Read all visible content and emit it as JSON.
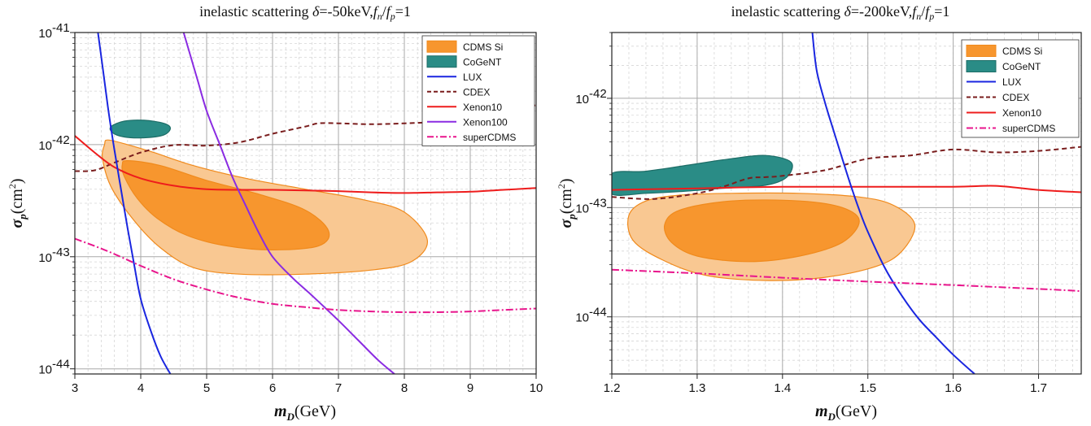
{
  "colors": {
    "cdms_outer": "#f9c892",
    "cdms_inner": "#f7962e",
    "cdms_edge": "#f08a1c",
    "cogent": "#2a8c86",
    "cogent_edge": "#1d6d67",
    "lux": "#1a26e0",
    "cdex": "#7a1d1d",
    "xenon10": "#ee1c1c",
    "xenon100": "#8a2be2",
    "supercdms": "#e8158c",
    "grid_major": "#a8a8a8",
    "grid_minor": "#d6d6d6"
  },
  "chart_data": [
    {
      "type": "line",
      "title": "inelastic scattering δ=-50keV, f_n/f_p=1",
      "title_parts": {
        "main": "inelastic scattering ",
        "delta": "δ",
        "rest1": "=-50keV,",
        "f": "f",
        "n": "n",
        "slash": "/",
        "p": "p",
        "eq": "=1"
      },
      "xlabel": {
        "m": "m",
        "sub": "D",
        "unit": "(GeV)"
      },
      "ylabel": {
        "sigma": "σ",
        "sub": "p",
        "unit": "(cm",
        "sup": "2",
        "close": ")"
      },
      "xlim": [
        3,
        10
      ],
      "ylim": [
        9e-45,
        1e-41
      ],
      "yscale": "log",
      "xticks": [
        "3",
        "4",
        "5",
        "6",
        "7",
        "8",
        "9",
        "10"
      ],
      "yticks": [
        {
          "value": 1e-41,
          "base": "10",
          "exp": "-41"
        },
        {
          "value": 1e-42,
          "base": "10",
          "exp": "-42"
        },
        {
          "value": 1e-43,
          "base": "10",
          "exp": "-43"
        },
        {
          "value": 1e-44,
          "base": "10",
          "exp": "-44"
        }
      ],
      "legend_position": "top-right",
      "legend": [
        {
          "label": "CDMS Si",
          "kind": "fill-light"
        },
        {
          "label": "CoGeNT",
          "kind": "fill-teal"
        },
        {
          "label": "LUX",
          "kind": "line-lux"
        },
        {
          "label": "CDEX",
          "kind": "line-cdex"
        },
        {
          "label": "Xenon10",
          "kind": "line-xenon10"
        },
        {
          "label": "Xenon100",
          "kind": "line-xenon100"
        },
        {
          "label": "superCDMS",
          "kind": "line-supercdms"
        }
      ],
      "regions": [
        {
          "name": "CDMS Si 2σ",
          "style": "cdms_outer",
          "points": [
            [
              3.5,
              1.1e-42
            ],
            [
              3.8,
              1e-42
            ],
            [
              4.2,
              8.5e-43
            ],
            [
              4.8,
              6.5e-43
            ],
            [
              5.6,
              5e-43
            ],
            [
              6.5,
              4e-43
            ],
            [
              7.4,
              3.2e-43
            ],
            [
              8.0,
              2.5e-43
            ],
            [
              8.35,
              1.4e-43
            ],
            [
              8.1,
              9e-44
            ],
            [
              7.5,
              7.6e-44
            ],
            [
              6.5,
              7e-44
            ],
            [
              5.5,
              7e-44
            ],
            [
              4.8,
              8e-44
            ],
            [
              4.3,
              1.2e-43
            ],
            [
              3.9,
              2.1e-43
            ],
            [
              3.55,
              4.2e-43
            ],
            [
              3.42,
              7.5e-43
            ],
            [
              3.45,
              1e-42
            ]
          ]
        },
        {
          "name": "CDMS Si 1σ",
          "style": "cdms_inner",
          "points": [
            [
              3.8,
              7.2e-43
            ],
            [
              4.3,
              6.5e-43
            ],
            [
              5.0,
              4.8e-43
            ],
            [
              5.8,
              3.6e-43
            ],
            [
              6.5,
              2.6e-43
            ],
            [
              6.85,
              1.7e-43
            ],
            [
              6.7,
              1.25e-43
            ],
            [
              6.0,
              1.15e-43
            ],
            [
              5.3,
              1.25e-43
            ],
            [
              4.7,
              1.55e-43
            ],
            [
              4.25,
              2.2e-43
            ],
            [
              3.95,
              3.3e-43
            ],
            [
              3.75,
              5.2e-43
            ],
            [
              3.72,
              6.6e-43
            ]
          ]
        },
        {
          "name": "CoGeNT",
          "style": "cogent",
          "points": [
            [
              3.55,
              1.45e-42
            ],
            [
              3.75,
              1.62e-42
            ],
            [
              4.05,
              1.65e-42
            ],
            [
              4.35,
              1.55e-42
            ],
            [
              4.45,
              1.4e-42
            ],
            [
              4.35,
              1.22e-42
            ],
            [
              4.05,
              1.15e-42
            ],
            [
              3.75,
              1.17e-42
            ],
            [
              3.57,
              1.28e-42
            ]
          ]
        }
      ],
      "series": [
        {
          "name": "CDEX",
          "style": "cdex",
          "dash": "6,4",
          "x": [
            3,
            3.3,
            3.6,
            4.0,
            4.5,
            5.0,
            5.5,
            6.0,
            6.5,
            6.7,
            7.0,
            7.5,
            8.0,
            8.5,
            9.0,
            9.5,
            10
          ],
          "y": [
            5.8e-43,
            5.9e-43,
            6.9e-43,
            8.5e-43,
            9.9e-43,
            9.8e-43,
            1.05e-42,
            1.25e-42,
            1.45e-42,
            1.55e-42,
            1.55e-42,
            1.52e-42,
            1.55e-42,
            1.6e-42,
            1.75e-42,
            1.95e-42,
            2.25e-42
          ]
        },
        {
          "name": "Xenon10",
          "style": "xenon10",
          "x": [
            3,
            3.3,
            3.6,
            4.0,
            4.5,
            5.0,
            5.5,
            6.0,
            6.5,
            7.0,
            7.5,
            8.0,
            8.5,
            9.0,
            9.5,
            10
          ],
          "y": [
            1.2e-42,
            8.5e-43,
            6.3e-43,
            5e-43,
            4.3e-43,
            4e-43,
            3.95e-43,
            3.95e-43,
            3.9e-43,
            3.85e-43,
            3.75e-43,
            3.7e-43,
            3.75e-43,
            3.8e-43,
            3.95e-43,
            4.1e-43
          ]
        },
        {
          "name": "LUX",
          "style": "lux",
          "x": [
            3.35,
            3.42,
            3.5,
            3.6,
            3.7,
            3.8,
            3.9,
            4.0,
            4.15,
            4.3,
            4.45
          ],
          "y": [
            1e-41,
            5e-42,
            2.2e-42,
            9e-43,
            4e-43,
            1.8e-43,
            8.5e-44,
            4.2e-44,
            2.2e-44,
            1.3e-44,
            9e-45
          ]
        },
        {
          "name": "Xenon100",
          "style": "xenon100",
          "x": [
            4.65,
            4.85,
            5.0,
            5.2,
            5.4,
            5.6,
            5.8,
            6.0,
            6.3,
            6.6,
            7.0,
            7.3,
            7.6,
            7.85
          ],
          "y": [
            1e-41,
            4e-42,
            2e-42,
            1e-42,
            5e-43,
            2.8e-43,
            1.6e-43,
            1e-43,
            6.5e-44,
            4.5e-44,
            2.7e-44,
            1.8e-44,
            1.2e-44,
            9e-45
          ]
        },
        {
          "name": "superCDMS",
          "style": "supercdms",
          "dash": "9,3,2,3",
          "x": [
            3,
            3.5,
            4.0,
            4.5,
            5.0,
            5.5,
            6.0,
            6.5,
            7.0,
            7.5,
            8.0,
            8.5,
            9.0,
            9.5,
            10
          ],
          "y": [
            1.45e-43,
            1.12e-43,
            8.3e-44,
            6.3e-44,
            5.1e-44,
            4.3e-44,
            3.8e-44,
            3.55e-44,
            3.35e-44,
            3.25e-44,
            3.2e-44,
            3.2e-44,
            3.25e-44,
            3.35e-44,
            3.45e-44
          ]
        }
      ]
    },
    {
      "type": "line",
      "title": "inelastic scattering δ=-200keV, f_n/f_p=1",
      "title_parts": {
        "main": "inelastic scattering ",
        "delta": "δ",
        "rest1": "=-200keV,",
        "f": "f",
        "n": "n",
        "slash": "/",
        "p": "p",
        "eq": "=1"
      },
      "xlabel": {
        "m": "m",
        "sub": "D",
        "unit": "(GeV)"
      },
      "ylabel": {
        "sigma": "σ",
        "sub": "p",
        "unit": "(cm",
        "sup": "2",
        "close": ")"
      },
      "xlim": [
        1.2,
        1.75
      ],
      "ylim": [
        3e-45,
        4e-42
      ],
      "yscale": "log",
      "xticks": [
        "1.2",
        "1.3",
        "1.4",
        "1.5",
        "1.6",
        "1.7"
      ],
      "yticks": [
        {
          "value": 1e-42,
          "base": "10",
          "exp": "-42"
        },
        {
          "value": 1e-43,
          "base": "10",
          "exp": "-43"
        },
        {
          "value": 1e-44,
          "base": "10",
          "exp": "-44"
        }
      ],
      "legend_position": "top-right",
      "legend": [
        {
          "label": "CDMS Si",
          "kind": "fill-light"
        },
        {
          "label": "CoGeNT",
          "kind": "fill-teal"
        },
        {
          "label": "LUX",
          "kind": "line-lux"
        },
        {
          "label": "CDEX",
          "kind": "line-cdex"
        },
        {
          "label": "Xenon10",
          "kind": "line-xenon10"
        },
        {
          "label": "superCDMS",
          "kind": "line-supercdms"
        }
      ],
      "regions": [
        {
          "name": "CDMS Si 2σ",
          "style": "cdms_outer",
          "points": [
            [
              1.24,
              1.15e-43
            ],
            [
              1.28,
              1.3e-43
            ],
            [
              1.34,
              1.35e-43
            ],
            [
              1.42,
              1.35e-43
            ],
            [
              1.49,
              1.25e-43
            ],
            [
              1.53,
              1.05e-43
            ],
            [
              1.555,
              7e-44
            ],
            [
              1.54,
              4e-44
            ],
            [
              1.51,
              2.9e-44
            ],
            [
              1.45,
              2.3e-44
            ],
            [
              1.38,
              2.15e-44
            ],
            [
              1.31,
              2.4e-44
            ],
            [
              1.26,
              3.3e-44
            ],
            [
              1.225,
              5e-44
            ],
            [
              1.22,
              8.5e-44
            ]
          ]
        },
        {
          "name": "CDMS Si 1σ",
          "style": "cdms_inner",
          "points": [
            [
              1.28,
              9.5e-44
            ],
            [
              1.34,
              1.15e-43
            ],
            [
              1.42,
              1.15e-43
            ],
            [
              1.47,
              1e-43
            ],
            [
              1.49,
              7.5e-44
            ],
            [
              1.47,
              4.8e-44
            ],
            [
              1.42,
              3.6e-44
            ],
            [
              1.36,
              3.2e-44
            ],
            [
              1.3,
              3.6e-44
            ],
            [
              1.27,
              4.8e-44
            ],
            [
              1.262,
              7e-44
            ]
          ]
        },
        {
          "name": "CoGeNT",
          "style": "cogent",
          "points": [
            [
              1.2,
              2.05e-43
            ],
            [
              1.24,
              2.15e-43
            ],
            [
              1.29,
              2.45e-43
            ],
            [
              1.34,
              2.8e-43
            ],
            [
              1.38,
              3e-43
            ],
            [
              1.41,
              2.6e-43
            ],
            [
              1.405,
              1.9e-43
            ],
            [
              1.38,
              1.6e-43
            ],
            [
              1.33,
              1.5e-43
            ],
            [
              1.28,
              1.4e-43
            ],
            [
              1.24,
              1.35e-43
            ],
            [
              1.2,
              1.33e-43
            ]
          ]
        }
      ],
      "series": [
        {
          "name": "CDEX",
          "style": "cdex",
          "dash": "6,4",
          "x": [
            1.2,
            1.25,
            1.3,
            1.33,
            1.36,
            1.38,
            1.4,
            1.45,
            1.5,
            1.55,
            1.6,
            1.65,
            1.7,
            1.75
          ],
          "y": [
            1.25e-43,
            1.2e-43,
            1.35e-43,
            1.55e-43,
            1.85e-43,
            1.9e-43,
            1.95e-43,
            2.2e-43,
            2.8e-43,
            3e-43,
            3.4e-43,
            3.2e-43,
            3.3e-43,
            3.6e-43
          ]
        },
        {
          "name": "Xenon10",
          "style": "xenon10",
          "x": [
            1.2,
            1.3,
            1.4,
            1.5,
            1.6,
            1.65,
            1.7,
            1.75
          ],
          "y": [
            1.45e-43,
            1.5e-43,
            1.55e-43,
            1.55e-43,
            1.55e-43,
            1.58e-43,
            1.45e-43,
            1.38e-43
          ]
        },
        {
          "name": "LUX",
          "style": "lux",
          "x": [
            1.435,
            1.44,
            1.45,
            1.46,
            1.47,
            1.48,
            1.49,
            1.5,
            1.52,
            1.54,
            1.56,
            1.58,
            1.6,
            1.625
          ],
          "y": [
            4e-42,
            1.8e-42,
            9e-43,
            5e-43,
            2.8e-43,
            1.6e-43,
            9.5e-44,
            6e-44,
            2.8e-44,
            1.55e-44,
            9.5e-45,
            6.5e-45,
            4.5e-45,
            3e-45
          ]
        },
        {
          "name": "superCDMS",
          "style": "supercdms",
          "dash": "9,3,2,3",
          "x": [
            1.2,
            1.3,
            1.4,
            1.5,
            1.6,
            1.7,
            1.75
          ],
          "y": [
            2.7e-44,
            2.5e-44,
            2.28e-44,
            2.1e-44,
            1.95e-44,
            1.8e-44,
            1.72e-44
          ]
        }
      ]
    }
  ]
}
